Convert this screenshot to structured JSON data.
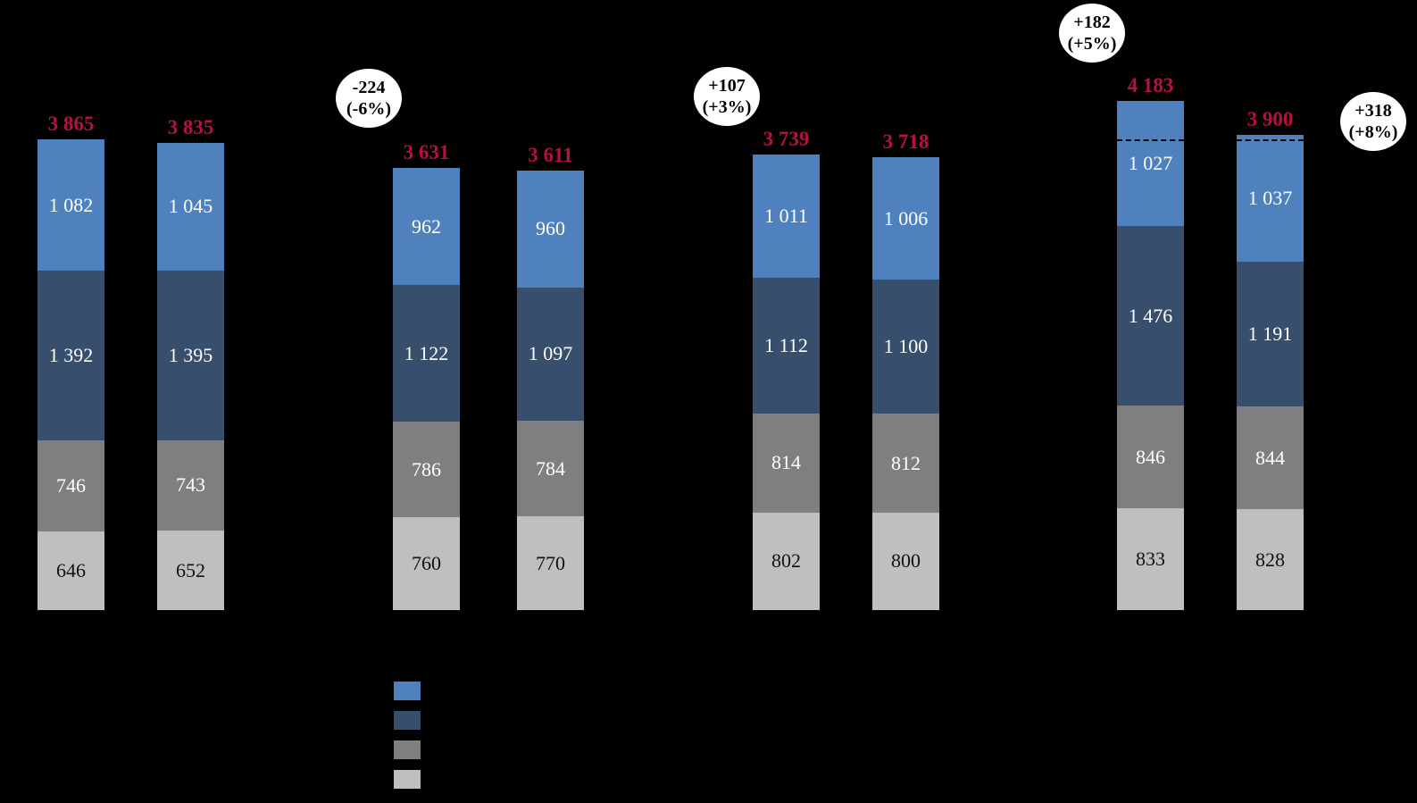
{
  "chart_data": {
    "type": "bar",
    "stacked": true,
    "background_color": "#000000",
    "total_label_color": "#B5123F",
    "series": [
      {
        "key": "light_blue",
        "color": "#4E81BD"
      },
      {
        "key": "dark_blue",
        "color": "#374E6D"
      },
      {
        "key": "gray",
        "color": "#7F7F7F"
      },
      {
        "key": "light_gray",
        "color": "#BFBFBF"
      }
    ],
    "bars": [
      {
        "total": "3 865",
        "light_blue": "1 082",
        "dark_blue": "1 392",
        "gray": "746",
        "light_gray": "646",
        "dashed_reference": false
      },
      {
        "total": "3 835",
        "light_blue": "1 045",
        "dark_blue": "1 395",
        "gray": "743",
        "light_gray": "652",
        "dashed_reference": false
      },
      {
        "total": "3 631",
        "light_blue": "962",
        "dark_blue": "1 122",
        "gray": "786",
        "light_gray": "760",
        "dashed_reference": false
      },
      {
        "total": "3 611",
        "light_blue": "960",
        "dark_blue": "1 097",
        "gray": "784",
        "light_gray": "770",
        "dashed_reference": false
      },
      {
        "total": "3 739",
        "light_blue": "1 011",
        "dark_blue": "1 112",
        "gray": "814",
        "light_gray": "802",
        "dashed_reference": false
      },
      {
        "total": "3 718",
        "light_blue": "1 006",
        "dark_blue": "1 100",
        "gray": "812",
        "light_gray": "800",
        "dashed_reference": false
      },
      {
        "total": "4 183",
        "light_blue": "1 027",
        "dark_blue": "1 476",
        "gray": "846",
        "light_gray": "833",
        "dashed_reference": true
      },
      {
        "total": "3 900",
        "light_blue": "1 037",
        "dark_blue": "1 191",
        "gray": "844",
        "light_gray": "828",
        "dashed_reference": true
      }
    ],
    "reference_level": 3865,
    "annotations": [
      {
        "line1": "-224",
        "line2": "(-6%)"
      },
      {
        "line1": "+107",
        "line2": "(+3%)"
      },
      {
        "line1": "+182",
        "line2": "(+5%)"
      },
      {
        "line1": "+318",
        "line2": "(+8%)"
      }
    ],
    "legend": {
      "items": [
        {
          "key": "light_blue",
          "color": "#4E81BD",
          "label": ""
        },
        {
          "key": "dark_blue",
          "color": "#374E6D",
          "label": ""
        },
        {
          "key": "gray",
          "color": "#7F7F7F",
          "label": ""
        },
        {
          "key": "light_gray",
          "color": "#BFBFBF",
          "label": ""
        }
      ]
    }
  }
}
